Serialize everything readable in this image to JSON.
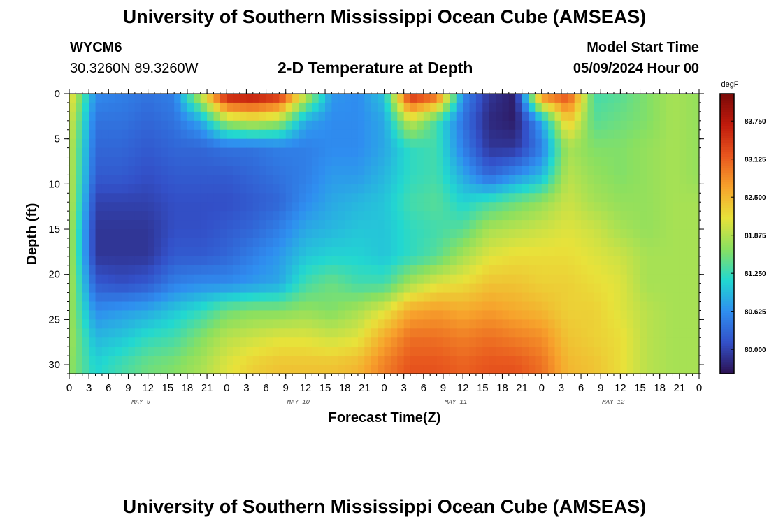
{
  "header": {
    "title": "University of Southern Mississippi Ocean Cube (AMSEAS)",
    "station_id": "WYCM6",
    "station_coords": "30.3260N  89.3260W",
    "subtitle": "2-D Temperature at Depth",
    "model_start_label": "Model Start Time",
    "model_start_value": "05/09/2024 Hour 00"
  },
  "footer": {
    "title": "University of Southern Mississippi Ocean Cube (AMSEAS)"
  },
  "chart_data": {
    "type": "heatmap",
    "xlabel": "Forecast Time(Z)",
    "ylabel": "Depth (ft)",
    "x_hours_range": [
      0,
      96
    ],
    "ylim": [
      0,
      31
    ],
    "y_inverted": true,
    "x_tick_labels": [
      "0",
      "3",
      "6",
      "9",
      "12",
      "15",
      "18",
      "21",
      "0",
      "3",
      "6",
      "9",
      "12",
      "15",
      "18",
      "21",
      "0",
      "3",
      "6",
      "9",
      "12",
      "15",
      "18",
      "21",
      "0",
      "3",
      "6",
      "9",
      "12",
      "15",
      "18",
      "21",
      "0"
    ],
    "y_tick_labels": [
      "0",
      "5",
      "10",
      "15",
      "20",
      "25",
      "30"
    ],
    "day_labels": [
      "MAY 9",
      "MAY 10",
      "MAY 11",
      "MAY 12"
    ],
    "colorbar": {
      "unit": "degF",
      "range": [
        79.6,
        84.2
      ],
      "tick_labels": [
        "83.750",
        "83.125",
        "82.500",
        "81.875",
        "81.250",
        "80.625",
        "80.000"
      ],
      "colors": [
        "#2c1050",
        "#3350c8",
        "#2f8ef0",
        "#22d8d0",
        "#8ae060",
        "#e8e23a",
        "#f7a22c",
        "#e8561e",
        "#c01a0c",
        "#7a0a08"
      ]
    },
    "depth_profiles": {
      "x": [
        0,
        4,
        8,
        12,
        16,
        20,
        24,
        28,
        32,
        36,
        40,
        44,
        48,
        52,
        56,
        60,
        64,
        68,
        72,
        76,
        80,
        84,
        88,
        92,
        96
      ],
      "depth_ft": [
        0,
        3,
        6,
        9,
        12,
        15,
        18,
        21,
        24,
        27,
        30
      ],
      "temperature_degF": [
        [
          82.3,
          82.1,
          82.0,
          82.0,
          82.0,
          81.9,
          81.9,
          81.9,
          81.8,
          81.8,
          81.7
        ],
        [
          80.6,
          80.4,
          80.3,
          80.2,
          80.0,
          79.9,
          79.9,
          80.2,
          80.6,
          80.9,
          81.1
        ],
        [
          80.5,
          80.4,
          80.3,
          80.2,
          80.0,
          79.9,
          79.9,
          80.1,
          80.7,
          81.0,
          81.3
        ],
        [
          80.4,
          80.3,
          80.2,
          80.1,
          80.0,
          79.9,
          79.9,
          80.2,
          80.8,
          81.2,
          81.5
        ],
        [
          80.5,
          80.4,
          80.3,
          80.2,
          80.1,
          80.1,
          80.2,
          80.5,
          81.0,
          81.3,
          81.6
        ],
        [
          82.0,
          80.8,
          80.3,
          80.2,
          80.1,
          80.1,
          80.2,
          80.6,
          81.2,
          81.6,
          81.8
        ],
        [
          83.8,
          81.8,
          80.4,
          80.2,
          80.1,
          80.2,
          80.3,
          80.6,
          81.5,
          81.9,
          82.1
        ],
        [
          83.9,
          82.0,
          80.4,
          80.3,
          80.2,
          80.3,
          80.5,
          80.7,
          81.6,
          82.0,
          82.3
        ],
        [
          83.6,
          81.8,
          80.5,
          80.4,
          80.3,
          80.5,
          80.7,
          80.8,
          81.6,
          82.1,
          82.4
        ],
        [
          82.0,
          80.8,
          80.5,
          80.5,
          80.6,
          80.8,
          81.0,
          81.3,
          81.7,
          82.1,
          82.4
        ],
        [
          80.7,
          80.6,
          80.6,
          80.7,
          80.8,
          80.9,
          81.1,
          81.5,
          81.6,
          82.0,
          82.4
        ],
        [
          80.6,
          80.6,
          80.6,
          80.7,
          80.9,
          81.0,
          81.1,
          81.3,
          81.8,
          82.1,
          82.5
        ],
        [
          81.0,
          80.8,
          80.8,
          80.9,
          81.0,
          81.0,
          81.0,
          81.3,
          82.1,
          82.6,
          82.9
        ],
        [
          83.6,
          82.0,
          81.2,
          81.2,
          81.3,
          81.2,
          81.2,
          81.8,
          82.6,
          83.0,
          83.2
        ],
        [
          83.2,
          81.3,
          81.3,
          81.3,
          81.4,
          81.3,
          81.4,
          82.1,
          82.7,
          83.0,
          83.2
        ],
        [
          80.6,
          80.4,
          80.5,
          80.8,
          81.1,
          81.4,
          81.8,
          82.2,
          82.6,
          82.9,
          83.1
        ],
        [
          79.9,
          79.8,
          79.9,
          80.3,
          81.3,
          81.8,
          82.1,
          82.4,
          82.7,
          83.0,
          83.2
        ],
        [
          79.7,
          79.7,
          79.9,
          80.6,
          81.5,
          81.9,
          82.2,
          82.4,
          82.6,
          82.9,
          83.2
        ],
        [
          83.0,
          80.8,
          80.5,
          80.9,
          81.7,
          82.0,
          82.2,
          82.3,
          82.5,
          82.8,
          83.0
        ],
        [
          83.3,
          82.4,
          81.8,
          81.9,
          82.0,
          82.1,
          82.2,
          82.3,
          82.3,
          82.4,
          82.5
        ],
        [
          81.3,
          81.4,
          81.6,
          81.7,
          81.8,
          82.0,
          82.1,
          82.2,
          82.3,
          82.3,
          82.4
        ],
        [
          81.4,
          81.5,
          81.6,
          81.6,
          81.7,
          81.8,
          82.0,
          82.1,
          82.1,
          82.2,
          82.2
        ],
        [
          81.6,
          81.6,
          81.7,
          81.7,
          81.7,
          81.7,
          81.8,
          81.8,
          81.9,
          81.9,
          81.9
        ],
        [
          81.8,
          81.8,
          81.8,
          81.8,
          81.8,
          81.8,
          81.8,
          81.8,
          81.8,
          81.8,
          81.8
        ],
        [
          81.7,
          81.7,
          81.7,
          81.7,
          81.8,
          81.8,
          81.8,
          81.8,
          81.8,
          81.8,
          81.8
        ]
      ]
    }
  }
}
